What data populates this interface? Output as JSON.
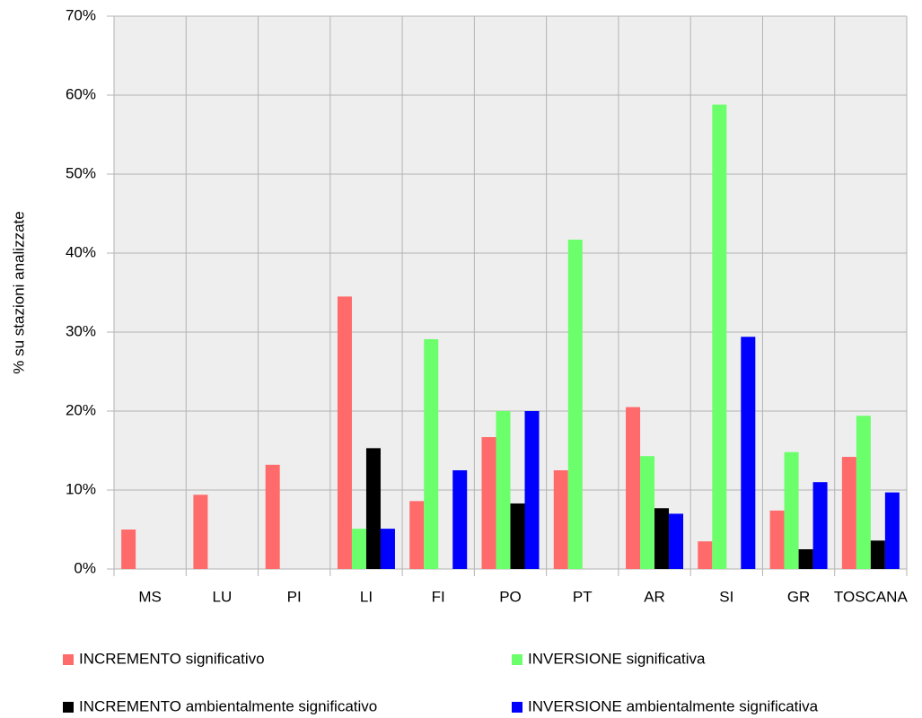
{
  "chart_data": {
    "type": "bar",
    "ylabel": "% su stazioni analizzate",
    "categories": [
      "MS",
      "LU",
      "PI",
      "LI",
      "FI",
      "PO",
      "PT",
      "AR",
      "SI",
      "GR",
      "TOSCANA"
    ],
    "series": [
      {
        "name": "INCREMENTO significativo",
        "color": "#ff6b6b",
        "values": [
          5.0,
          9.4,
          13.2,
          34.5,
          8.6,
          16.7,
          12.5,
          20.5,
          3.5,
          7.4,
          14.2
        ]
      },
      {
        "name": "INVERSIONE significativa",
        "color": "#6bff6b",
        "values": [
          0,
          0,
          0,
          5.1,
          29.1,
          20.0,
          41.7,
          14.3,
          58.8,
          14.8,
          19.4
        ]
      },
      {
        "name": "INCREMENTO ambientalmente significativo",
        "color": "#000000",
        "values": [
          0,
          0,
          0,
          15.3,
          0,
          8.3,
          0,
          7.7,
          0,
          2.5,
          3.6
        ]
      },
      {
        "name": "INVERSIONE ambientalmente significativa",
        "color": "#0000ff",
        "values": [
          0,
          0,
          0,
          5.1,
          12.5,
          20.0,
          0,
          7.0,
          29.4,
          11.0,
          9.7
        ]
      }
    ],
    "ylim": [
      0,
      70
    ],
    "yticks": [
      {
        "value": 0,
        "label": "0%"
      },
      {
        "value": 10,
        "label": "10%"
      },
      {
        "value": 20,
        "label": "20%"
      },
      {
        "value": 30,
        "label": "30%"
      },
      {
        "value": 40,
        "label": "40%"
      },
      {
        "value": 50,
        "label": "50%"
      },
      {
        "value": 60,
        "label": "60%"
      },
      {
        "value": 70,
        "label": "70%"
      }
    ],
    "grid": true,
    "legend": "bottom"
  }
}
